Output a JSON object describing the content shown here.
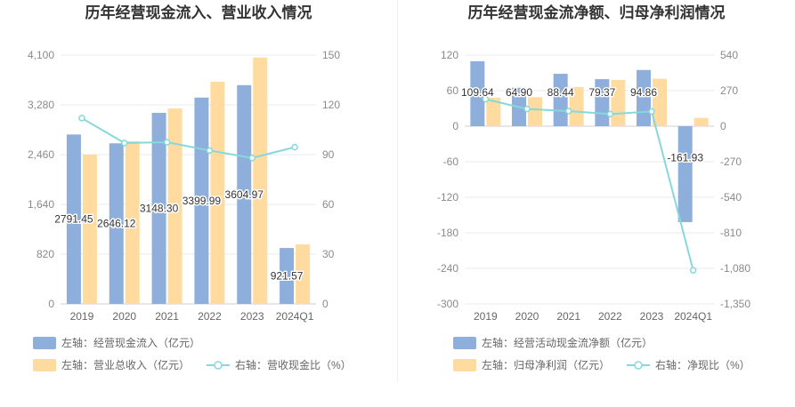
{
  "colors": {
    "bar_primary": "#8eaedc",
    "bar_secondary": "#ffdba0",
    "line": "#86d8dc",
    "grid": "#e6e8f0",
    "text": "#333333",
    "axis_text": "#8a8a8a"
  },
  "chart_data": [
    {
      "type": "bar",
      "title": "历年经营现金流入、营业收入情况",
      "categories": [
        "2019",
        "2020",
        "2021",
        "2022",
        "2023",
        "2024Q1"
      ],
      "left_axis": {
        "ticks": [
          "0",
          "820",
          "1,640",
          "2,460",
          "3,280",
          "4,100"
        ],
        "ylim": [
          0,
          4100
        ]
      },
      "right_axis": {
        "ticks": [
          "0",
          "30",
          "60",
          "90",
          "120",
          "150"
        ],
        "ylim": [
          0,
          150
        ]
      },
      "series": [
        {
          "name": "左轴：经营现金流入（亿元）",
          "type": "bar",
          "axis": "left",
          "values": [
            2791.45,
            2646.12,
            3148.3,
            3399.99,
            3604.97,
            921.57
          ],
          "labels": [
            "2791.45",
            "2646.12",
            "3148.30",
            "3399.99",
            "3604.97",
            "921.57"
          ]
        },
        {
          "name": "左轴：营业总收入（亿元）",
          "type": "bar",
          "axis": "left",
          "values": [
            2460,
            2680,
            3220,
            3660,
            4060,
            980
          ]
        },
        {
          "name": "右轴：营收现金比（%）",
          "type": "line",
          "axis": "right",
          "values": [
            112,
            97,
            97.5,
            92.5,
            88,
            94.5
          ]
        }
      ],
      "legend": [
        {
          "label": "左轴：经营现金流入（亿元）",
          "kind": "bar",
          "series": 0
        },
        {
          "label": "左轴：营业总收入（亿元）",
          "kind": "bar",
          "series": 1
        },
        {
          "label": "右轴：营收现金比（%）",
          "kind": "line",
          "series": 2
        }
      ]
    },
    {
      "type": "bar",
      "title": "历年经营现金流净额、归母净利润情况",
      "categories": [
        "2019",
        "2020",
        "2021",
        "2022",
        "2023",
        "2024Q1"
      ],
      "left_axis": {
        "ticks": [
          "-300",
          "-240",
          "-180",
          "-120",
          "-60",
          "0",
          "60",
          "120"
        ],
        "ylim": [
          -300,
          120
        ]
      },
      "right_axis": {
        "ticks": [
          "-1,350",
          "-1,080",
          "-810",
          "-540",
          "-270",
          "0",
          "270",
          "540"
        ],
        "ylim": [
          -1350,
          540
        ]
      },
      "series": [
        {
          "name": "左轴：经营活动现金流净额（亿元）",
          "type": "bar",
          "axis": "left",
          "values": [
            109.64,
            64.9,
            88.44,
            79.37,
            94.86,
            -161.93
          ],
          "labels": [
            "109.64",
            "64.90",
            "88.44",
            "79.37",
            "94.86",
            "-161.93"
          ]
        },
        {
          "name": "左轴：归母净利润（亿元）",
          "type": "bar",
          "axis": "left",
          "values": [
            48,
            49,
            66,
            78,
            80,
            14
          ]
        },
        {
          "name": "右轴：净现比（%）",
          "type": "line",
          "axis": "right",
          "values": [
            205,
            131,
            115,
            92,
            112,
            -1095
          ]
        }
      ],
      "legend": [
        {
          "label": "左轴：经营活动现金流净额（亿元）",
          "kind": "bar",
          "series": 0
        },
        {
          "label": "左轴：归母净利润（亿元）",
          "kind": "bar",
          "series": 1
        },
        {
          "label": "右轴：净现比（%）",
          "kind": "line",
          "series": 2
        }
      ]
    }
  ]
}
